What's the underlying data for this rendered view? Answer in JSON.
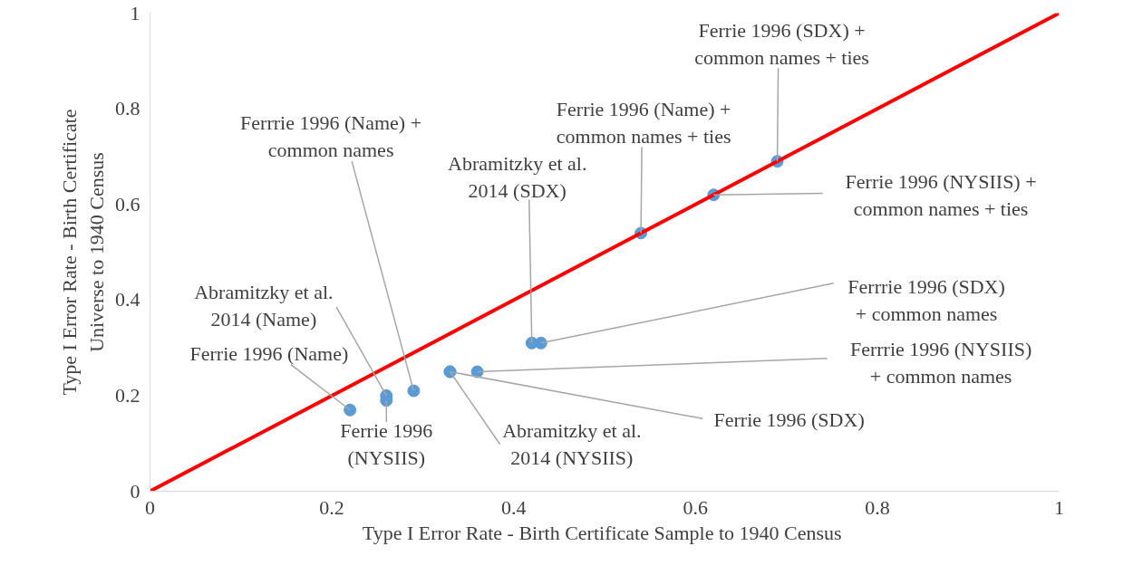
{
  "chart_data": {
    "type": "scatter",
    "xlabel": "Type I Error Rate - Birth Certificate Sample to  1940 Census",
    "ylabel": "Type I Error Rate - Birth Certificate\nUniverse to 1940 Census",
    "x": [
      0.22,
      0.26,
      0.26,
      0.29,
      0.33,
      0.33,
      0.36,
      0.42,
      0.43,
      0.54,
      0.62,
      0.69
    ],
    "series": [
      {
        "color": "#5b9bd5",
        "marker": "circle",
        "values": [
          0.17,
          0.2,
          0.19,
          0.21,
          0.25,
          0.25,
          0.25,
          0.31,
          0.31,
          0.54,
          0.62,
          0.69
        ]
      },
      {
        "type": "line",
        "color": "#ff0000",
        "marker": "none",
        "x": [
          0,
          1
        ],
        "values": [
          0,
          1
        ]
      }
    ],
    "annotations": [
      {
        "text": "Ferrie 1996 (Name)",
        "x": 0.22,
        "y": 0.17
      },
      {
        "text": "Abramitzky et al.\n2014 (Name)",
        "x": 0.26,
        "y": 0.2
      },
      {
        "text": "Ferrie 1996\n(NYSIIS)",
        "x": 0.26,
        "y": 0.19
      },
      {
        "text": "Ferrrie 1996 (Name) +\ncommon names",
        "x": 0.29,
        "y": 0.21
      },
      {
        "text": "Abramitzky et al.\n2014 (NYSIIS)",
        "x": 0.33,
        "y": 0.25
      },
      {
        "text": "Ferrie 1996 (SDX)",
        "x": 0.33,
        "y": 0.25
      },
      {
        "text": "Ferrrie 1996 (NYSIIS)\n+ common names",
        "x": 0.36,
        "y": 0.25
      },
      {
        "text": "Abramitzky et al.\n2014 (SDX)",
        "x": 0.42,
        "y": 0.31
      },
      {
        "text": "Ferrrie 1996 (SDX)\n+ common names",
        "x": 0.43,
        "y": 0.31
      },
      {
        "text": "Ferrie 1996 (Name) +\ncommon names + ties",
        "x": 0.54,
        "y": 0.54
      },
      {
        "text": "Ferrie 1996 (NYSIIS) +\ncommon names + ties",
        "x": 0.62,
        "y": 0.62
      },
      {
        "text": "Ferrie 1996 (SDX) +\ncommon names + ties",
        "x": 0.69,
        "y": 0.69
      }
    ],
    "xlim": [
      0,
      1
    ],
    "ylim": [
      0,
      1
    ],
    "xticks": [
      0,
      0.2,
      0.4,
      0.6,
      0.8,
      1
    ],
    "yticks": [
      0,
      0.2,
      0.4,
      0.6,
      0.8,
      1
    ],
    "grid": false
  }
}
